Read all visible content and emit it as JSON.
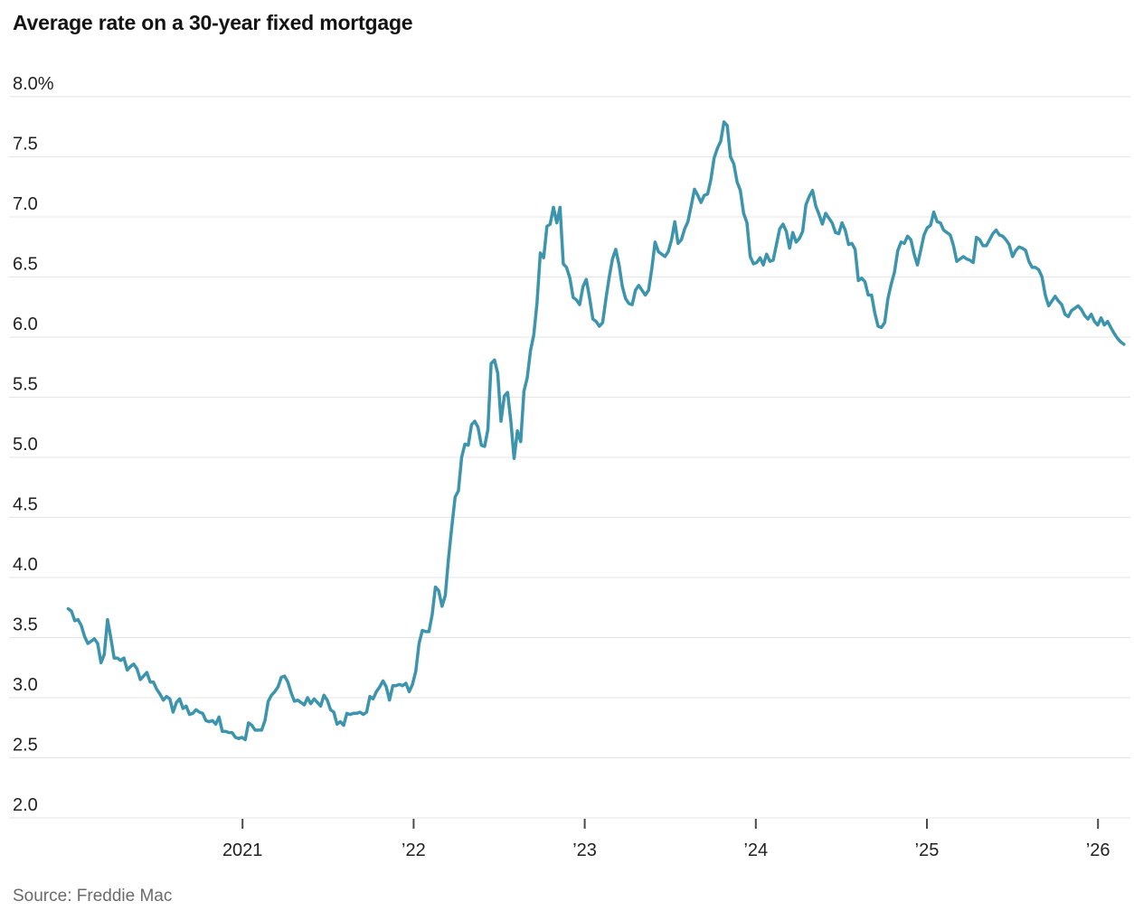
{
  "title": "Average rate on a 30-year fixed mortgage",
  "source": "Source: Freddie Mac",
  "chart_data": {
    "type": "line",
    "title": "Average rate on a 30-year fixed mortgage",
    "series_name": "30-year fixed mortgage average rate",
    "unit": "%",
    "frequency": "weekly",
    "xlabel": "",
    "ylabel": "",
    "ylim": [
      2.0,
      8.0
    ],
    "grid": "horizontal",
    "legend": "none",
    "line_color": "#3c95ac",
    "x_start_year": 2019.981,
    "points_per_year": 52.18,
    "y_ticks": [
      {
        "value": 8.0,
        "label": "8.0%"
      },
      {
        "value": 7.5,
        "label": "7.5"
      },
      {
        "value": 7.0,
        "label": "7.0"
      },
      {
        "value": 6.5,
        "label": "6.5"
      },
      {
        "value": 6.0,
        "label": "6.0"
      },
      {
        "value": 5.5,
        "label": "5.5"
      },
      {
        "value": 5.0,
        "label": "5.0"
      },
      {
        "value": 4.5,
        "label": "4.5"
      },
      {
        "value": 4.0,
        "label": "4.0"
      },
      {
        "value": 3.5,
        "label": "3.5"
      },
      {
        "value": 3.0,
        "label": "3.0"
      },
      {
        "value": 2.5,
        "label": "2.5"
      },
      {
        "value": 2.0,
        "label": "2.0"
      }
    ],
    "x_ticks": [
      {
        "year": 2021,
        "label": "2021"
      },
      {
        "year": 2022,
        "label": "’22"
      },
      {
        "year": 2023,
        "label": "’23"
      },
      {
        "year": 2024,
        "label": "’24"
      },
      {
        "year": 2025,
        "label": "’25"
      },
      {
        "year": 2026,
        "label": "’26"
      }
    ],
    "values": [
      3.74,
      3.72,
      3.64,
      3.65,
      3.6,
      3.51,
      3.45,
      3.47,
      3.49,
      3.45,
      3.29,
      3.36,
      3.65,
      3.5,
      3.33,
      3.33,
      3.31,
      3.33,
      3.23,
      3.26,
      3.28,
      3.24,
      3.15,
      3.18,
      3.21,
      3.13,
      3.13,
      3.07,
      3.03,
      2.98,
      3.01,
      2.99,
      2.88,
      2.96,
      2.99,
      2.91,
      2.93,
      2.86,
      2.87,
      2.9,
      2.88,
      2.87,
      2.81,
      2.8,
      2.81,
      2.78,
      2.84,
      2.72,
      2.72,
      2.71,
      2.71,
      2.67,
      2.66,
      2.67,
      2.65,
      2.79,
      2.77,
      2.73,
      2.73,
      2.73,
      2.81,
      2.97,
      3.02,
      3.05,
      3.09,
      3.17,
      3.18,
      3.13,
      3.04,
      2.97,
      2.98,
      2.96,
      2.94,
      3.0,
      2.95,
      2.99,
      2.96,
      2.93,
      3.02,
      2.98,
      2.9,
      2.88,
      2.78,
      2.8,
      2.77,
      2.87,
      2.86,
      2.87,
      2.87,
      2.88,
      2.86,
      2.88,
      3.01,
      2.99,
      3.05,
      3.09,
      3.14,
      3.09,
      2.98,
      3.1,
      3.1,
      3.11,
      3.1,
      3.12,
      3.05,
      3.11,
      3.22,
      3.45,
      3.56,
      3.55,
      3.55,
      3.69,
      3.92,
      3.89,
      3.76,
      3.85,
      4.16,
      4.42,
      4.67,
      4.72,
      5.0,
      5.11,
      5.1,
      5.27,
      5.3,
      5.25,
      5.1,
      5.09,
      5.23,
      5.78,
      5.81,
      5.7,
      5.3,
      5.51,
      5.54,
      5.3,
      4.99,
      5.22,
      5.13,
      5.55,
      5.66,
      5.89,
      6.02,
      6.29,
      6.7,
      6.66,
      6.92,
      6.94,
      7.08,
      6.95,
      7.08,
      6.61,
      6.58,
      6.49,
      6.33,
      6.31,
      6.27,
      6.42,
      6.48,
      6.33,
      6.15,
      6.13,
      6.09,
      6.12,
      6.32,
      6.5,
      6.65,
      6.73,
      6.6,
      6.42,
      6.32,
      6.28,
      6.27,
      6.39,
      6.43,
      6.39,
      6.35,
      6.39,
      6.57,
      6.79,
      6.71,
      6.69,
      6.67,
      6.71,
      6.81,
      6.96,
      6.78,
      6.81,
      6.9,
      6.96,
      7.09,
      7.23,
      7.18,
      7.12,
      7.18,
      7.19,
      7.31,
      7.49,
      7.57,
      7.63,
      7.79,
      7.76,
      7.5,
      7.44,
      7.29,
      7.22,
      7.03,
      6.95,
      6.67,
      6.61,
      6.62,
      6.66,
      6.6,
      6.69,
      6.63,
      6.64,
      6.77,
      6.9,
      6.94,
      6.88,
      6.74,
      6.87,
      6.79,
      6.82,
      6.88,
      7.1,
      7.17,
      7.22,
      7.09,
      7.02,
      6.94,
      7.03,
      6.99,
      6.95,
      6.87,
      6.86,
      6.95,
      6.89,
      6.77,
      6.78,
      6.73,
      6.47,
      6.49,
      6.46,
      6.35,
      6.35,
      6.2,
      6.09,
      6.08,
      6.12,
      6.32,
      6.44,
      6.54,
      6.72,
      6.79,
      6.78,
      6.84,
      6.81,
      6.69,
      6.6,
      6.72,
      6.85,
      6.91,
      6.93,
      7.04,
      6.96,
      6.95,
      6.89,
      6.87,
      6.85,
      6.76,
      6.63,
      6.65,
      6.67,
      6.65,
      6.64,
      6.62,
      6.83,
      6.81,
      6.76,
      6.76,
      6.81,
      6.86,
      6.89,
      6.85,
      6.84,
      6.81,
      6.77,
      6.67,
      6.72,
      6.75,
      6.74,
      6.72,
      6.63,
      6.58,
      6.58,
      6.56,
      6.5,
      6.35,
      6.26,
      6.3,
      6.34,
      6.3,
      6.27,
      6.19,
      6.17,
      6.22,
      6.24,
      6.26,
      6.23,
      6.18,
      6.15,
      6.19,
      6.13,
      6.1,
      6.16,
      6.1,
      6.13,
      6.08,
      6.03,
      5.99,
      5.96,
      5.94
    ]
  }
}
